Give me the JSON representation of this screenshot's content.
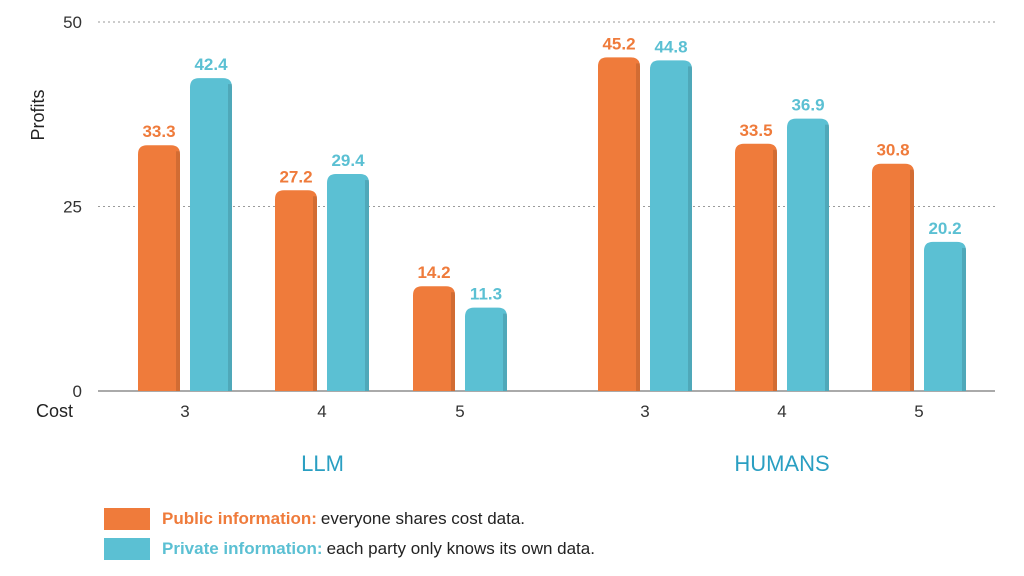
{
  "chart_data": {
    "type": "bar",
    "ylabel": "Profits",
    "xlabel": "Cost",
    "ylim": [
      0,
      50
    ],
    "yticks": [
      0,
      25,
      50
    ],
    "grid": true,
    "groups": [
      {
        "name": "LLM",
        "categories": [
          "3",
          "4",
          "5"
        ]
      },
      {
        "name": "HUMANS",
        "categories": [
          "3",
          "4",
          "5"
        ]
      }
    ],
    "series": [
      {
        "name": "Public information:",
        "color": "#EF7B3B",
        "values": [
          33.3,
          27.2,
          14.2,
          45.2,
          33.5,
          30.8
        ]
      },
      {
        "name": "Private information:",
        "color": "#5BC0D3",
        "values": [
          42.4,
          29.4,
          11.3,
          44.8,
          36.9,
          20.2
        ]
      }
    ],
    "legend_position": "bottom-left"
  },
  "legend": [
    {
      "name": "Public information:",
      "desc": "everyone shares cost data.",
      "color": "#EF7B3B"
    },
    {
      "name": "Private information:",
      "desc": "each party only knows its own data.",
      "color": "#5BC0D3"
    }
  ],
  "colors": {
    "public": "#EF7B3B",
    "private": "#5BC0D3",
    "group_label": "#2A9FC2"
  }
}
